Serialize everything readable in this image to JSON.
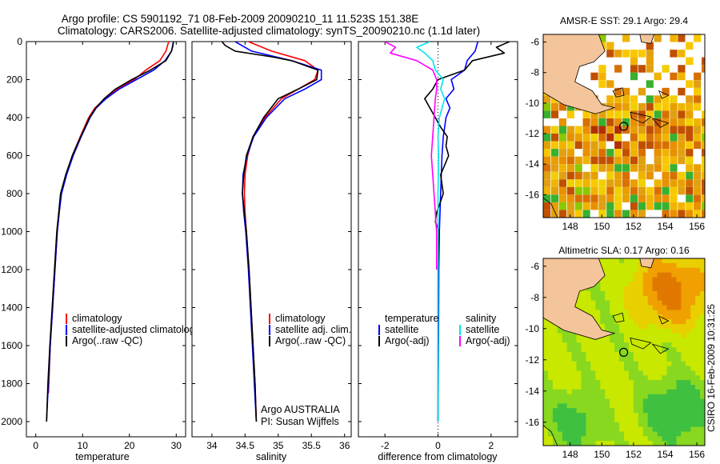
{
  "header": {
    "title_line1": "Argo profile: CS 5901192_71 08-Feb-2009 20090210_11 11.523S 151.38E",
    "title_line2": "Climatology: CARS2006. Satellite-adjusted climatology: synTS_20090210.nc (1.1d later)"
  },
  "footer": {
    "credit": "CSIRO 16-Feb-2009 10:31:25"
  },
  "chart_data": [
    {
      "id": "temperature",
      "type": "line",
      "xlabel": "temperature",
      "ylabel": "",
      "xlim": [
        -2,
        32
      ],
      "ylim": [
        2080,
        0
      ],
      "xticks": [
        "0",
        "10",
        "20",
        "30"
      ],
      "xtick_values": [
        0,
        10,
        20,
        30
      ],
      "yticks": [
        "0",
        "200",
        "400",
        "600",
        "800",
        "1000",
        "1200",
        "1400",
        "1600",
        "1800",
        "2000"
      ],
      "ytick_values": [
        0,
        200,
        400,
        600,
        800,
        1000,
        1200,
        1400,
        1600,
        1800,
        2000
      ],
      "legend": [
        "climatology",
        "satellite-adjusted climatology",
        "Argo(..raw -QC)"
      ],
      "legend_loc": "lower-center",
      "series": [
        {
          "name": "climatology",
          "color": "#ff0000",
          "depth": [
            0,
            50,
            100,
            150,
            200,
            250,
            300,
            350,
            400,
            500,
            600,
            700,
            800,
            900,
            1000,
            1200,
            1400,
            1600,
            1800,
            1850
          ],
          "values": [
            28.4,
            27.8,
            26.5,
            23.5,
            21.0,
            17.5,
            14.8,
            12.6,
            11.3,
            9.5,
            7.8,
            6.5,
            5.4,
            5.0,
            4.6,
            4.1,
            3.6,
            3.1,
            2.8,
            2.7
          ]
        },
        {
          "name": "satellite-adjusted climatology",
          "color": "#0000ff",
          "depth": [
            0,
            50,
            100,
            150,
            200,
            250,
            300,
            350,
            400,
            500,
            600,
            700,
            800,
            900,
            1000,
            1200,
            1400,
            1600,
            1800,
            1900,
            2000
          ],
          "values": [
            29.4,
            29.0,
            27.6,
            25.2,
            21.5,
            17.8,
            15.0,
            12.9,
            11.6,
            9.7,
            8.0,
            6.6,
            5.5,
            5.0,
            4.6,
            4.1,
            3.6,
            3.1,
            2.7,
            2.5,
            2.3
          ]
        },
        {
          "name": "Argo(..raw -QC)",
          "color": "#000000",
          "depth": [
            0,
            20,
            50,
            100,
            150,
            200,
            250,
            300,
            350,
            400,
            500,
            600,
            700,
            800,
            900,
            1000,
            1200,
            1400,
            1600,
            1800,
            2000
          ],
          "values": [
            29.4,
            29.3,
            29.0,
            27.8,
            24.5,
            20.5,
            17.0,
            14.6,
            12.8,
            11.5,
            9.6,
            7.8,
            6.4,
            5.3,
            4.9,
            4.5,
            4.0,
            3.5,
            3.0,
            2.6,
            2.3
          ]
        }
      ]
    },
    {
      "id": "salinity",
      "type": "line",
      "xlabel": "salinity",
      "ylabel": "",
      "xlim": [
        33.7,
        36.1
      ],
      "ylim": [
        2080,
        0
      ],
      "xticks": [
        "34",
        "34.5",
        "35",
        "35.5",
        "36"
      ],
      "xtick_values": [
        34,
        34.5,
        35,
        35.5,
        36
      ],
      "legend": [
        "climatology",
        "satellite adj. clim.",
        "Argo(..raw -QC)"
      ],
      "legend_loc": "lower-center",
      "annotation_line1": "Argo AUSTRALIA",
      "annotation_line2": "PI: Susan Wijffels",
      "series": [
        {
          "name": "climatology",
          "color": "#ff0000",
          "depth": [
            0,
            50,
            100,
            150,
            200,
            250,
            300,
            400,
            500,
            600,
            700,
            800,
            900,
            1000,
            1200,
            1400,
            1600,
            1800,
            2000
          ],
          "values": [
            34.55,
            34.9,
            35.4,
            35.6,
            35.55,
            35.3,
            35.05,
            34.8,
            34.62,
            34.54,
            34.5,
            34.49,
            34.5,
            34.52,
            34.56,
            34.59,
            34.62,
            34.65,
            34.67
          ]
        },
        {
          "name": "satellite adj. clim.",
          "color": "#0000ff",
          "depth": [
            0,
            50,
            100,
            150,
            200,
            250,
            300,
            400,
            500,
            600,
            700,
            800,
            900,
            1000,
            1200,
            1400,
            1600,
            1800,
            2000
          ],
          "values": [
            34.35,
            34.6,
            35.2,
            35.65,
            35.65,
            35.4,
            35.1,
            34.82,
            34.63,
            34.53,
            34.47,
            34.46,
            34.48,
            34.51,
            34.55,
            34.58,
            34.61,
            34.64,
            34.67
          ]
        },
        {
          "name": "Argo(..raw -QC)",
          "color": "#000000",
          "depth": [
            0,
            20,
            50,
            80,
            100,
            150,
            200,
            250,
            300,
            400,
            500,
            600,
            700,
            800,
            900,
            1000,
            1200,
            1400,
            1600,
            1800,
            2000
          ],
          "values": [
            34.15,
            34.2,
            34.35,
            34.9,
            35.2,
            35.6,
            35.58,
            35.3,
            35.0,
            34.78,
            34.62,
            34.52,
            34.48,
            34.46,
            34.49,
            34.52,
            34.56,
            34.59,
            34.62,
            34.65,
            34.67
          ]
        }
      ]
    },
    {
      "id": "difference",
      "type": "line",
      "xlabel": "difference from climatology",
      "ylabel": "",
      "xlim": [
        -3,
        3
      ],
      "ylim": [
        2080,
        0
      ],
      "xticks": [
        "-2",
        "0",
        "2"
      ],
      "xtick_values": [
        -2,
        0,
        2
      ],
      "legend_headers": [
        "temperature",
        "salinity"
      ],
      "legend": [
        "satellite",
        "Argo(-adj)",
        "satellite",
        "Argo(-adj)"
      ],
      "legend_loc": "lower-center",
      "series": [
        {
          "name": "satellite",
          "group": "temperature",
          "color": "#0000ff",
          "depth": [
            0,
            50,
            100,
            150,
            200,
            250,
            300,
            350,
            400,
            500,
            600,
            800,
            1000,
            1200,
            1500,
            1800,
            2000
          ],
          "values": [
            1.5,
            1.4,
            1.1,
            1.0,
            0.5,
            0.6,
            0.3,
            0.45,
            0.3,
            0.2,
            0.15,
            0.1,
            0.05,
            0.03,
            0.02,
            0.01,
            0.0
          ]
        },
        {
          "name": "Argo(-adj)",
          "group": "temperature",
          "color": "#000000",
          "depth": [
            0,
            30,
            60,
            100,
            150,
            200,
            250,
            300,
            350,
            400,
            450,
            500,
            550,
            600,
            700,
            800,
            900,
            950,
            1000,
            1200,
            1500,
            1800,
            2000
          ],
          "values": [
            2.7,
            2.2,
            2.5,
            1.3,
            1.0,
            0.0,
            -0.2,
            -0.5,
            -0.3,
            -0.1,
            0.1,
            0.35,
            0.3,
            0.4,
            0.1,
            0.2,
            -0.05,
            -0.1,
            0.05,
            0.0,
            0.0,
            0.0,
            0.0
          ]
        },
        {
          "name": "satellite",
          "group": "salinity",
          "color": "#00e5ee",
          "depth": [
            0,
            30,
            60,
            100,
            150,
            200,
            250,
            300,
            400,
            500,
            600,
            800,
            1000,
            1200,
            1500,
            1800,
            2000
          ],
          "values": [
            -0.3,
            -0.8,
            -0.5,
            -0.2,
            -0.1,
            0.2,
            0.1,
            0.25,
            0.05,
            0.0,
            0.02,
            0.0,
            0.0,
            0.0,
            0.0,
            0.0,
            0.0
          ]
        },
        {
          "name": "Argo(-adj)",
          "group": "salinity",
          "color": "#ff00ff",
          "depth": [
            0,
            30,
            60,
            100,
            150,
            200,
            250,
            300,
            400,
            500,
            600,
            700,
            800,
            900,
            950,
            1000,
            1200
          ],
          "values": [
            -2.0,
            -1.6,
            -1.8,
            -0.8,
            -0.2,
            -0.05,
            -0.05,
            -0.1,
            -0.15,
            -0.2,
            -0.25,
            -0.2,
            -0.15,
            -0.1,
            -0.08,
            -0.05,
            -0.05
          ]
        }
      ]
    },
    {
      "id": "sst_map",
      "type": "heatmap",
      "title": "AMSR-E SST: 29.1  Argo: 29.4",
      "xlim": [
        146.3,
        156.5
      ],
      "ylim": [
        -17.5,
        -5.5
      ],
      "xticks": [
        "148",
        "150",
        "152",
        "154",
        "156"
      ],
      "xtick_values": [
        148,
        150,
        152,
        154,
        156
      ],
      "yticks": [
        "-6",
        "-8",
        "-10",
        "-12",
        "-14",
        "-16"
      ],
      "ytick_values": [
        -6,
        -8,
        -10,
        -12,
        -14,
        -16
      ],
      "marker": {
        "lon": 151.38,
        "lat": -11.52
      }
    },
    {
      "id": "sla_map",
      "type": "heatmap",
      "title": "Altimetric SLA: 0.17  Argo: 0.16",
      "xlim": [
        146.3,
        156.5
      ],
      "ylim": [
        -17.5,
        -5.5
      ],
      "xticks": [
        "148",
        "150",
        "152",
        "154",
        "156"
      ],
      "xtick_values": [
        148,
        150,
        152,
        154,
        156
      ],
      "yticks": [
        "-6",
        "-8",
        "-10",
        "-12",
        "-14",
        "-16"
      ],
      "ytick_values": [
        -6,
        -8,
        -10,
        -12,
        -14,
        -16
      ],
      "marker": {
        "lon": 151.38,
        "lat": -11.52
      }
    }
  ]
}
